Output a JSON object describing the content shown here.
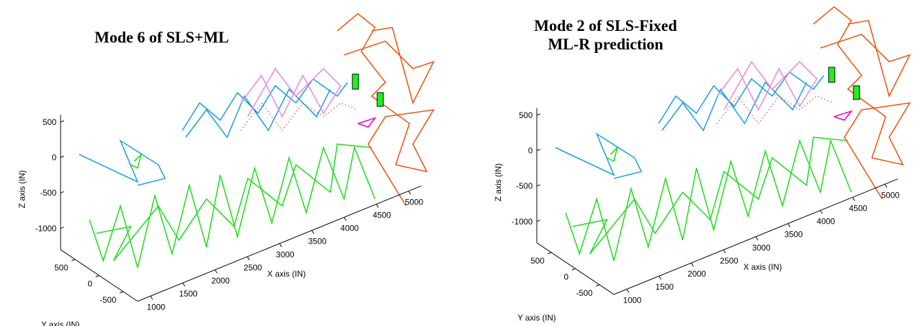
{
  "chart_data": [
    {
      "type": "wireframe",
      "title": [
        "Mode 6 of SLS+ML"
      ],
      "xlabel": "X axis (IN)",
      "ylabel": "Y axis (IN)",
      "zlabel": "Z axis (IN)",
      "xlim": [
        800,
        5200
      ],
      "ylim": [
        -800,
        800
      ],
      "zlim": [
        -1300,
        600
      ],
      "xticks": [
        1000,
        1500,
        2000,
        2500,
        3000,
        3500,
        4000,
        4500,
        5000
      ],
      "yticks": [
        -500,
        0,
        500
      ],
      "zticks": [
        -1000,
        -500,
        0,
        500
      ]
    },
    {
      "type": "wireframe",
      "title": [
        "Mode 2 of SLS-Fixed",
        "ML-R prediction"
      ],
      "xlabel": "X axis (IN)",
      "ylabel": "Y axis (IN)",
      "zlabel": "Z axis (IN)",
      "xlim": [
        800,
        5200
      ],
      "ylim": [
        -800,
        800
      ],
      "zlim": [
        -1300,
        600
      ],
      "xticks": [
        1000,
        1500,
        2000,
        2500,
        3000,
        3500,
        4000,
        4500,
        5000
      ],
      "yticks": [
        -500,
        0,
        500
      ],
      "zticks": [
        -1000,
        -500,
        0,
        500
      ]
    }
  ]
}
